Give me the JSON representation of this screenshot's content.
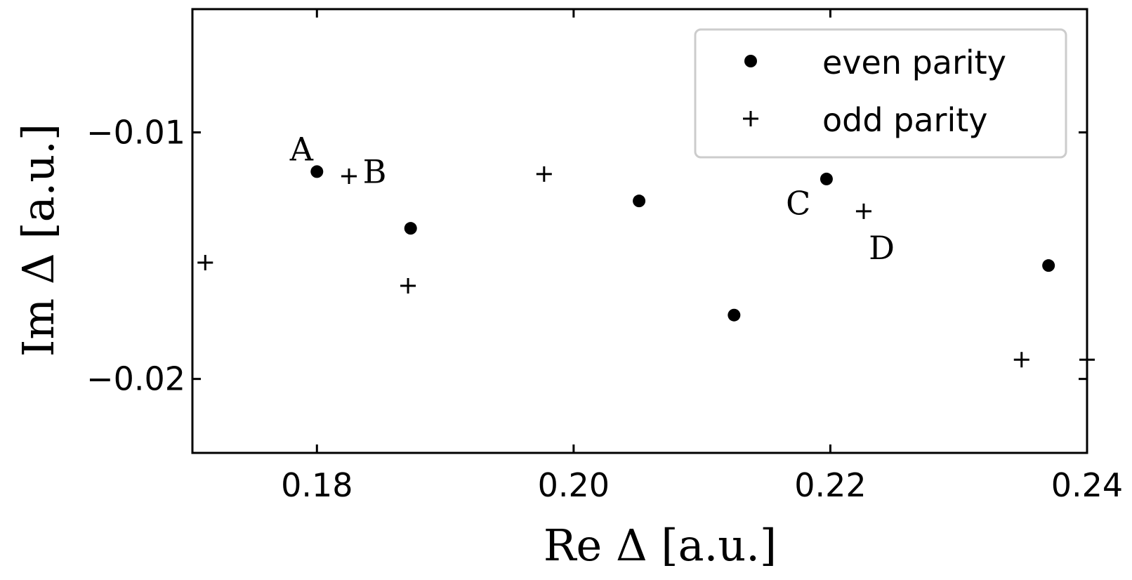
{
  "chart_data": {
    "type": "scatter",
    "xlabel": "Re Δ [a.u.]",
    "ylabel": "Im Δ [a.u.]",
    "xlim": [
      0.1703,
      0.24
    ],
    "ylim": [
      -0.023,
      -0.005
    ],
    "x_ticks": [
      0.18,
      0.2,
      0.22,
      0.24
    ],
    "x_tick_labels": [
      "0.18",
      "0.20",
      "0.22",
      "0.24"
    ],
    "y_ticks": [
      -0.01,
      -0.02
    ],
    "y_tick_labels": [
      "−0.01",
      "−0.02"
    ],
    "grid": false,
    "legend_position": "top-right",
    "series": [
      {
        "name": "even parity",
        "marker": "circle",
        "color": "#000000",
        "points": [
          {
            "x": 0.18,
            "y": -0.01159
          },
          {
            "x": 0.1873,
            "y": -0.01389
          },
          {
            "x": 0.2051,
            "y": -0.01278
          },
          {
            "x": 0.2125,
            "y": -0.01741
          },
          {
            "x": 0.2197,
            "y": -0.01189
          },
          {
            "x": 0.237,
            "y": -0.0154
          }
        ]
      },
      {
        "name": "odd parity",
        "marker": "plus",
        "color": "#000000",
        "points": [
          {
            "x": 0.1713,
            "y": -0.01528
          },
          {
            "x": 0.1825,
            "y": -0.01178
          },
          {
            "x": 0.1871,
            "y": -0.01622
          },
          {
            "x": 0.1977,
            "y": -0.01169
          },
          {
            "x": 0.2226,
            "y": -0.0132
          },
          {
            "x": 0.2349,
            "y": -0.01922
          },
          {
            "x": 0.24,
            "y": -0.01922
          }
        ]
      }
    ],
    "annotations": [
      {
        "text": "A",
        "x": 0.1788,
        "y": -0.01068
      },
      {
        "text": "B",
        "x": 0.1845,
        "y": -0.0116
      },
      {
        "text": "C",
        "x": 0.2175,
        "y": -0.01288
      },
      {
        "text": "D",
        "x": 0.224,
        "y": -0.01468
      }
    ]
  }
}
